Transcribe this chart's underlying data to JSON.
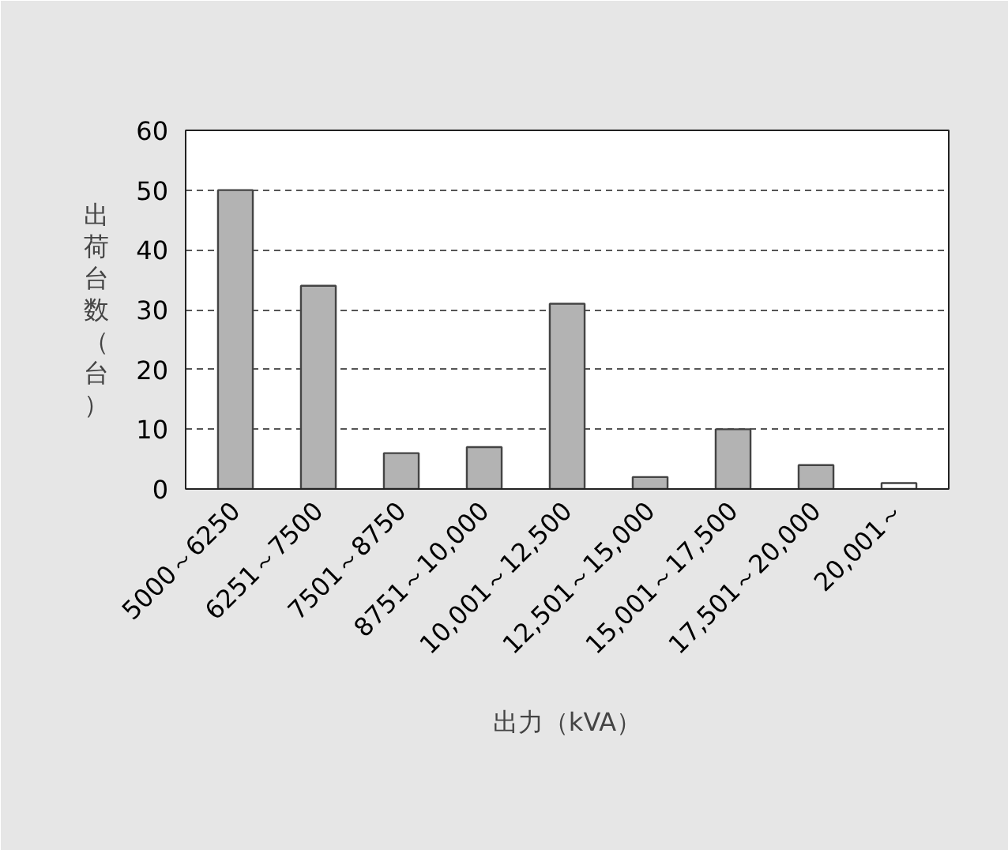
{
  "chart_data": {
    "type": "bar",
    "xlabel": "出力（kVA）",
    "ylabel": "出荷台数（台）",
    "categories": [
      "5000～6250",
      "6251～7500",
      "7501～8750",
      "8751～10,000",
      "10,001～12,500",
      "12,501～15,000",
      "15,001～17,500",
      "17,501～20,000",
      "20,001～"
    ],
    "values": [
      50,
      34,
      6,
      7,
      31,
      2,
      10,
      4,
      1
    ],
    "colors": [
      "#b3b3b3",
      "#b3b3b3",
      "#b3b3b3",
      "#b3b3b3",
      "#b3b3b3",
      "#b3b3b3",
      "#b3b3b3",
      "#b3b3b3",
      "#ffffff"
    ],
    "ylim": [
      0,
      60
    ],
    "yticks": [
      0,
      10,
      20,
      30,
      40,
      50,
      60
    ],
    "grid": "y"
  }
}
